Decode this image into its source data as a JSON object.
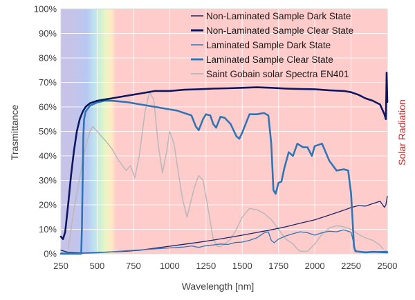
{
  "chart_data": {
    "type": "line",
    "x_label": "Wavelength [nm]",
    "y_label": "Trasmittance",
    "y2_label": "Solar Radiation",
    "xlim": [
      250,
      2500
    ],
    "ylim": [
      0,
      100
    ],
    "x_ticks": [
      "250",
      "500",
      "750",
      "1000",
      "1250",
      "1500",
      "1750",
      "2000",
      "2250",
      "2500"
    ],
    "y_ticks": [
      "0%",
      "10%",
      "20%",
      "30%",
      "40%",
      "50%",
      "60%",
      "70%",
      "80%",
      "90%",
      "100%"
    ],
    "grid": true,
    "legend_position": "top-right",
    "background_bands": [
      {
        "x0": 250,
        "x1": 400,
        "color": "#c7c3e8"
      },
      {
        "x0": 400,
        "x1": 460,
        "color": "#b8c8f2"
      },
      {
        "x0": 460,
        "x1": 500,
        "color": "#bfe3f0"
      },
      {
        "x0": 500,
        "x1": 540,
        "color": "#cdf0d3"
      },
      {
        "x0": 540,
        "x1": 580,
        "color": "#ecf5c4"
      },
      {
        "x0": 580,
        "x1": 620,
        "color": "#ffe9c4"
      },
      {
        "x0": 620,
        "x1": 2500,
        "color": "#ffcccc"
      }
    ],
    "series": [
      {
        "name": "Non-Laminated Sample Dark State",
        "color": "#1f2366",
        "width": 1.3,
        "points": [
          [
            250,
            1.5
          ],
          [
            300,
            0.6
          ],
          [
            400,
            0.3
          ],
          [
            500,
            0.5
          ],
          [
            600,
            0.8
          ],
          [
            700,
            1.0
          ],
          [
            800,
            1.5
          ],
          [
            900,
            2.3
          ],
          [
            1000,
            3.1
          ],
          [
            1100,
            3.9
          ],
          [
            1200,
            4.7
          ],
          [
            1300,
            5.6
          ],
          [
            1400,
            6.6
          ],
          [
            1500,
            7.6
          ],
          [
            1600,
            8.7
          ],
          [
            1700,
            9.8
          ],
          [
            1800,
            11.0
          ],
          [
            1900,
            12.5
          ],
          [
            2000,
            13.9
          ],
          [
            2100,
            15.8
          ],
          [
            2200,
            17.8
          ],
          [
            2250,
            18.9
          ],
          [
            2300,
            19.7
          ],
          [
            2350,
            19.5
          ],
          [
            2400,
            20.5
          ],
          [
            2450,
            21.5
          ],
          [
            2480,
            19.0
          ],
          [
            2490,
            20.0
          ],
          [
            2500,
            23.5
          ]
        ]
      },
      {
        "name": "Non-Laminated Sample Clear State",
        "color": "#0d1660",
        "width": 2.6,
        "points": [
          [
            250,
            7
          ],
          [
            265,
            6
          ],
          [
            280,
            9
          ],
          [
            300,
            20
          ],
          [
            320,
            32
          ],
          [
            340,
            42
          ],
          [
            360,
            50
          ],
          [
            380,
            55
          ],
          [
            400,
            58
          ],
          [
            420,
            60
          ],
          [
            450,
            61.5
          ],
          [
            500,
            62.5
          ],
          [
            550,
            63.0
          ],
          [
            600,
            63.5
          ],
          [
            700,
            64.5
          ],
          [
            800,
            65.5
          ],
          [
            850,
            66
          ],
          [
            900,
            66.5
          ],
          [
            950,
            66.5
          ],
          [
            1000,
            66.5
          ],
          [
            1100,
            67.0
          ],
          [
            1200,
            67.2
          ],
          [
            1300,
            67.5
          ],
          [
            1400,
            67.6
          ],
          [
            1500,
            67.8
          ],
          [
            1600,
            68.0
          ],
          [
            1700,
            67.8
          ],
          [
            1800,
            67.5
          ],
          [
            1900,
            67.3
          ],
          [
            2000,
            67.2
          ],
          [
            2100,
            66.8
          ],
          [
            2200,
            66.5
          ],
          [
            2250,
            66.0
          ],
          [
            2300,
            65.0
          ],
          [
            2350,
            63.5
          ],
          [
            2400,
            62.5
          ],
          [
            2450,
            61.0
          ],
          [
            2480,
            57.0
          ],
          [
            2490,
            55.0
          ],
          [
            2495,
            74.0
          ],
          [
            2500,
            62.0
          ]
        ]
      },
      {
        "name": "Laminated Sample Dark State",
        "color": "#2e75b6",
        "width": 1.3,
        "points": [
          [
            250,
            0.3
          ],
          [
            400,
            0.2
          ],
          [
            500,
            0.4
          ],
          [
            600,
            0.8
          ],
          [
            700,
            1.2
          ],
          [
            800,
            1.6
          ],
          [
            900,
            2.0
          ],
          [
            1000,
            2.4
          ],
          [
            1100,
            2.8
          ],
          [
            1150,
            3.2
          ],
          [
            1200,
            2.6
          ],
          [
            1250,
            3.3
          ],
          [
            1300,
            3.6
          ],
          [
            1350,
            4.0
          ],
          [
            1400,
            3.8
          ],
          [
            1450,
            4.6
          ],
          [
            1500,
            4.8
          ],
          [
            1550,
            5.5
          ],
          [
            1600,
            6.5
          ],
          [
            1650,
            8.5
          ],
          [
            1680,
            9.0
          ],
          [
            1700,
            5.5
          ],
          [
            1720,
            4.5
          ],
          [
            1750,
            6.0
          ],
          [
            1800,
            7.3
          ],
          [
            1850,
            8.2
          ],
          [
            1900,
            9.0
          ],
          [
            1950,
            8.6
          ],
          [
            2000,
            7.6
          ],
          [
            2050,
            8.6
          ],
          [
            2100,
            9.2
          ],
          [
            2150,
            9.0
          ],
          [
            2200,
            9.8
          ],
          [
            2250,
            8.8
          ],
          [
            2280,
            1.5
          ],
          [
            2300,
            0.8
          ],
          [
            2400,
            0.8
          ],
          [
            2500,
            1.0
          ]
        ]
      },
      {
        "name": "Laminated Sample Clear State",
        "color": "#2e75b6",
        "width": 2.6,
        "points": [
          [
            250,
            0
          ],
          [
            390,
            0
          ],
          [
            395,
            10
          ],
          [
            400,
            30
          ],
          [
            405,
            48
          ],
          [
            410,
            55
          ],
          [
            420,
            58
          ],
          [
            450,
            60.5
          ],
          [
            500,
            61.8
          ],
          [
            550,
            62.5
          ],
          [
            600,
            62.5
          ],
          [
            700,
            62.0
          ],
          [
            800,
            61.0
          ],
          [
            900,
            60.0
          ],
          [
            1000,
            59.0
          ],
          [
            1050,
            58.5
          ],
          [
            1100,
            57.5
          ],
          [
            1150,
            56.5
          ],
          [
            1180,
            52.0
          ],
          [
            1200,
            50.5
          ],
          [
            1230,
            55.0
          ],
          [
            1250,
            57.0
          ],
          [
            1280,
            56.5
          ],
          [
            1300,
            53.0
          ],
          [
            1320,
            51.5
          ],
          [
            1350,
            56.0
          ],
          [
            1380,
            55.5
          ],
          [
            1420,
            53.0
          ],
          [
            1460,
            48.0
          ],
          [
            1480,
            47.0
          ],
          [
            1500,
            49.5
          ],
          [
            1550,
            57.0
          ],
          [
            1600,
            57.0
          ],
          [
            1650,
            57.5
          ],
          [
            1680,
            56.5
          ],
          [
            1700,
            45.0
          ],
          [
            1715,
            26.0
          ],
          [
            1730,
            24.5
          ],
          [
            1750,
            29.0
          ],
          [
            1770,
            29.5
          ],
          [
            1790,
            35.0
          ],
          [
            1820,
            41.5
          ],
          [
            1850,
            40.0
          ],
          [
            1880,
            45.0
          ],
          [
            1920,
            43.5
          ],
          [
            1950,
            43.5
          ],
          [
            1980,
            40.0
          ],
          [
            2000,
            44.0
          ],
          [
            2050,
            45.0
          ],
          [
            2100,
            38.0
          ],
          [
            2150,
            34.0
          ],
          [
            2200,
            34.5
          ],
          [
            2230,
            34.0
          ],
          [
            2250,
            24.5
          ],
          [
            2270,
            3.0
          ],
          [
            2280,
            1.0
          ],
          [
            2350,
            0.6
          ],
          [
            2400,
            0.8
          ],
          [
            2500,
            0.6
          ]
        ]
      },
      {
        "name": "Saint Gobain solar Spectra EN401",
        "color": "#b8b8b8",
        "width": 1.5,
        "points": [
          [
            300,
            2
          ],
          [
            320,
            10
          ],
          [
            340,
            18
          ],
          [
            370,
            28
          ],
          [
            400,
            38
          ],
          [
            430,
            46
          ],
          [
            450,
            50
          ],
          [
            470,
            52
          ],
          [
            500,
            50
          ],
          [
            530,
            48
          ],
          [
            560,
            46
          ],
          [
            600,
            43
          ],
          [
            650,
            38
          ],
          [
            700,
            34
          ],
          [
            730,
            36
          ],
          [
            760,
            31
          ],
          [
            790,
            40
          ],
          [
            830,
            58
          ],
          [
            860,
            66
          ],
          [
            890,
            63
          ],
          [
            920,
            45
          ],
          [
            950,
            33
          ],
          [
            980,
            42
          ],
          [
            1000,
            50
          ],
          [
            1030,
            45
          ],
          [
            1060,
            33
          ],
          [
            1090,
            22
          ],
          [
            1120,
            15
          ],
          [
            1140,
            20
          ],
          [
            1170,
            27
          ],
          [
            1200,
            32
          ],
          [
            1230,
            30
          ],
          [
            1260,
            20
          ],
          [
            1300,
            6
          ],
          [
            1330,
            3
          ],
          [
            1350,
            3
          ],
          [
            1380,
            4
          ],
          [
            1420,
            6
          ],
          [
            1460,
            10
          ],
          [
            1500,
            15
          ],
          [
            1550,
            18.5
          ],
          [
            1600,
            18
          ],
          [
            1650,
            16.5
          ],
          [
            1700,
            14
          ],
          [
            1750,
            10
          ],
          [
            1800,
            6
          ],
          [
            1850,
            4
          ],
          [
            1880,
            2
          ],
          [
            1900,
            1
          ],
          [
            1950,
            1
          ],
          [
            2000,
            4
          ],
          [
            2050,
            8
          ],
          [
            2100,
            10.5
          ],
          [
            2150,
            11.5
          ],
          [
            2200,
            11
          ],
          [
            2250,
            10
          ],
          [
            2300,
            8
          ],
          [
            2350,
            6.5
          ],
          [
            2400,
            5.5
          ],
          [
            2450,
            3.5
          ],
          [
            2470,
            2
          ]
        ]
      }
    ]
  }
}
